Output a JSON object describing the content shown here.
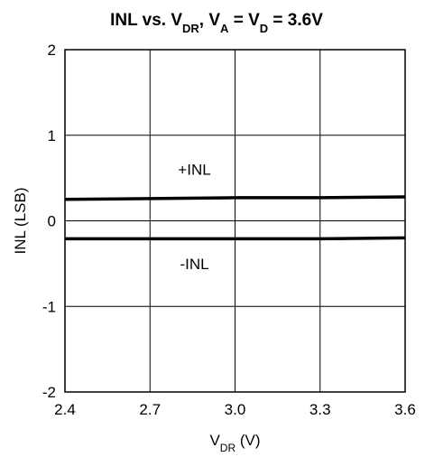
{
  "chart_data": {
    "type": "line",
    "title": {
      "parts": [
        {
          "t": "INL vs. V"
        },
        {
          "t": "DR",
          "sub": true
        },
        {
          "t": ", V"
        },
        {
          "t": "A",
          "sub": true
        },
        {
          "t": " = V"
        },
        {
          "t": "D",
          "sub": true
        },
        {
          "t": " = 3.6V"
        }
      ]
    },
    "xlabel": {
      "parts": [
        {
          "t": "V"
        },
        {
          "t": "DR",
          "sub": true
        },
        {
          "t": " (V)"
        }
      ]
    },
    "ylabel": "INL (LSB)",
    "xlim": [
      2.4,
      3.6
    ],
    "ylim": [
      -2,
      2
    ],
    "x_ticks": [
      "2.4",
      "2.7",
      "3.0",
      "3.3",
      "3.6"
    ],
    "x_tick_values": [
      2.4,
      2.7,
      3.0,
      3.3,
      3.6
    ],
    "y_ticks": [
      "2",
      "1",
      "0",
      "-1",
      "-2"
    ],
    "y_tick_values": [
      2,
      1,
      0,
      -1,
      -2
    ],
    "grid": true,
    "series": [
      {
        "name": "+INL",
        "x": [
          2.4,
          2.7,
          3.0,
          3.3,
          3.6
        ],
        "y": [
          0.25,
          0.26,
          0.27,
          0.27,
          0.28
        ]
      },
      {
        "name": "-INL",
        "x": [
          2.4,
          2.7,
          3.0,
          3.3,
          3.6
        ],
        "y": [
          -0.21,
          -0.21,
          -0.21,
          -0.21,
          -0.2
        ]
      }
    ],
    "annotations": [
      {
        "text": "+INL",
        "x": 3.0,
        "y": 0.6
      },
      {
        "text": "-INL",
        "x": 3.0,
        "y": -0.5
      }
    ]
  }
}
